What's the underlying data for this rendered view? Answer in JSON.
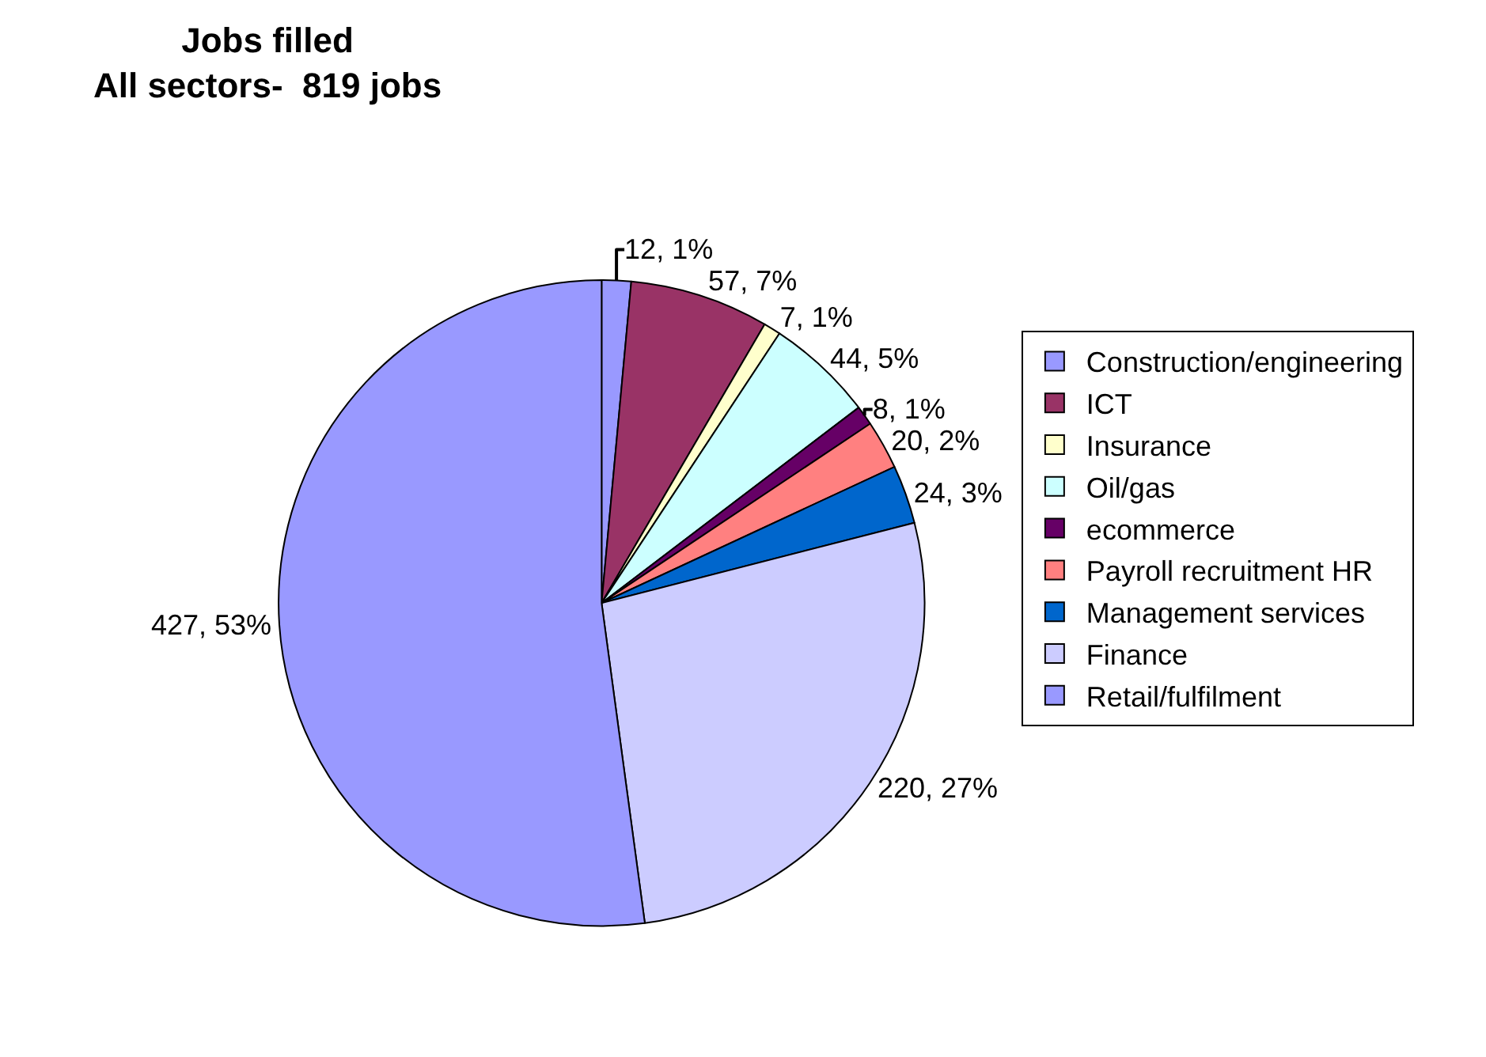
{
  "chart_data": {
    "type": "pie",
    "title": "Jobs filled\nAll sectors-  819 jobs",
    "categories": [
      "Construction/engineering",
      "ICT",
      "Insurance",
      "Oil/gas",
      "ecommerce",
      "Payroll recruitment HR",
      "Management services",
      "Finance",
      "Retail/fulfilment"
    ],
    "values": [
      12,
      57,
      7,
      44,
      8,
      20,
      24,
      220,
      427
    ],
    "value_labels": [
      "12, 1%",
      "57, 7%",
      "7, 1%",
      "44, 5%",
      "8, 1%",
      "20, 2%",
      "24, 3%",
      "220, 27%",
      "427, 53%"
    ],
    "colors": [
      "#9999ff",
      "#993366",
      "#ffffcc",
      "#ccffff",
      "#660066",
      "#ff8080",
      "#0066cc",
      "#ccccff",
      "#9999ff"
    ],
    "legend": "right"
  }
}
